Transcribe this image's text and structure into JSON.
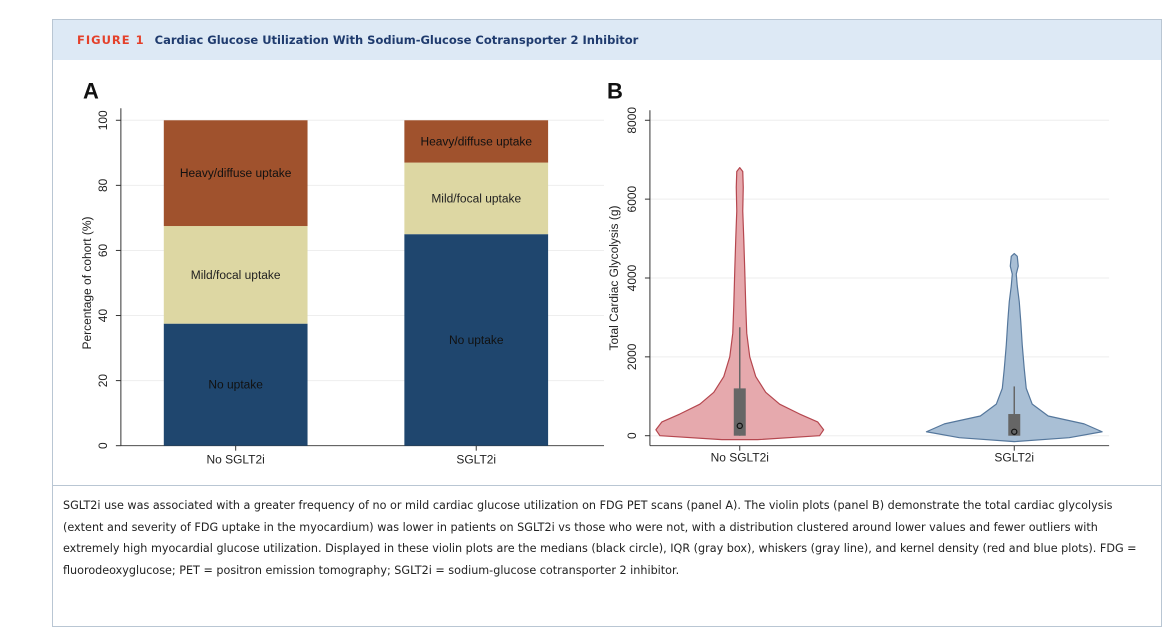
{
  "figure": {
    "label": "FIGURE 1",
    "title": "Cardiac Glucose Utilization With Sodium-Glucose Cotransporter 2 Inhibitor"
  },
  "caption": "SGLT2i use was associated with a greater frequency of no or mild cardiac glucose utilization on FDG PET scans (panel A). The violin plots (panel B) demonstrate the total cardiac glycolysis (extent and severity of FDG uptake in the myocardium) was lower in patients on SGLT2i vs those who were not, with a distribution clustered around lower values and fewer outliers with extremely high myocardial glucose utilization. Displayed in these violin plots are the medians (black circle), IQR (gray box), whiskers (gray line), and kernel density (red and blue plots). FDG = fluorodeoxyglucose; PET = positron emission tomography; SGLT2i = sodium-glucose cotransporter 2 inhibitor.",
  "colors": {
    "no_uptake": "#1f466e",
    "mild_uptake": "#ddd7a3",
    "heavy_uptake": "#a0522d",
    "violin_red_fill": "#e6a9ad",
    "violin_red_stroke": "#b5474f",
    "violin_blue_fill": "#a9bfd5",
    "violin_blue_stroke": "#55779c",
    "box_gray": "#666666"
  },
  "chart_data": [
    {
      "panel": "A",
      "type": "bar",
      "stacked": true,
      "ylabel": "Percentage of cohort (%)",
      "ylim": [
        0,
        100
      ],
      "yticks": [
        "0",
        "20",
        "40",
        "60",
        "80",
        "100"
      ],
      "categories": [
        "No SGLT2i",
        "SGLT2i"
      ],
      "series": [
        {
          "name": "No uptake",
          "values": [
            37.5,
            65
          ]
        },
        {
          "name": "Mild/focal uptake",
          "values": [
            30,
            22
          ]
        },
        {
          "name": "Heavy/diffuse uptake",
          "values": [
            32.5,
            13
          ]
        }
      ]
    },
    {
      "panel": "B",
      "type": "violin",
      "ylabel": "Total Cardiac Glycolysis (g)",
      "ylim": [
        0,
        8000
      ],
      "yticks": [
        "0",
        "2000",
        "4000",
        "6000",
        "8000"
      ],
      "categories": [
        "No SGLT2i",
        "SGLT2i"
      ],
      "groups": [
        {
          "name": "No SGLT2i",
          "median": 250,
          "q1": 0,
          "q3": 1200,
          "whisker_low": 0,
          "whisker_high": 2750,
          "max": 6800
        },
        {
          "name": "SGLT2i",
          "median": 100,
          "q1": 0,
          "q3": 550,
          "whisker_low": 0,
          "whisker_high": 1250,
          "max": 4600
        }
      ]
    }
  ]
}
